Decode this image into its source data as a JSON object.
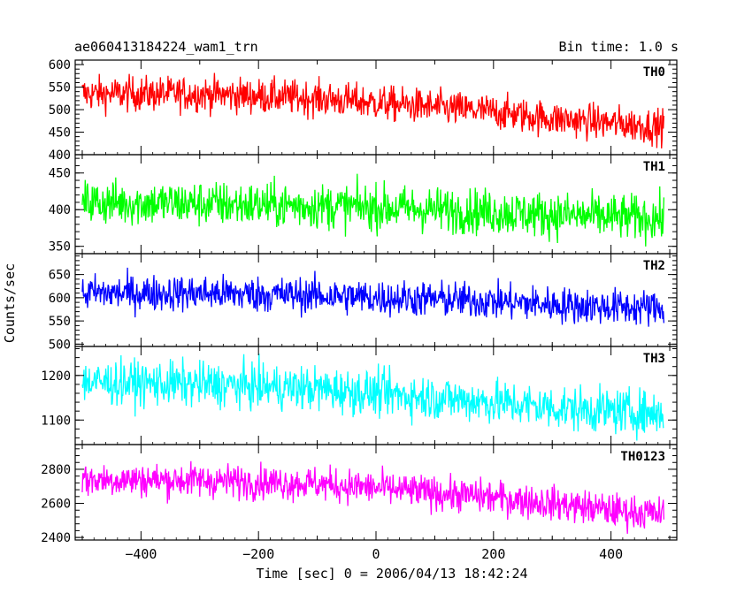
{
  "header": {
    "title": "ae060413184224_wam1_trn",
    "bin_time": "Bin time: 1.0 s"
  },
  "axes": {
    "xlabel": "Time [sec] 0 = 2006/04/13 18:42:24",
    "ylabel": "Counts/sec"
  },
  "chart_data": {
    "type": "line",
    "title": "ae060413184224_wam1_trn",
    "xlabel": "Time [sec] 0 = 2006/04/13 18:42:24",
    "ylabel": "Counts/sec",
    "xlim": [
      -512,
      512
    ],
    "x_ticks": [
      -400,
      -200,
      0,
      200,
      400
    ],
    "x_range_data": [
      -500,
      490
    ],
    "bin_time_s": 1.0,
    "panels": [
      {
        "name": "TH0",
        "color": "#ff0000",
        "ylim": [
          400,
          610
        ],
        "yticks": [
          400,
          450,
          500,
          550,
          600
        ],
        "trend": {
          "x": [
            -500,
            -300,
            -100,
            0,
            100,
            200,
            300,
            400,
            490
          ],
          "y": [
            535,
            535,
            525,
            515,
            505,
            495,
            480,
            470,
            462
          ]
        },
        "noise_amplitude": 35
      },
      {
        "name": "TH1",
        "color": "#00ff00",
        "ylim": [
          340,
          475
        ],
        "yticks": [
          350,
          400,
          450
        ],
        "trend": {
          "x": [
            -500,
            -300,
            -100,
            0,
            100,
            200,
            300,
            400,
            490
          ],
          "y": [
            410,
            408,
            405,
            403,
            400,
            397,
            393,
            390,
            388
          ]
        },
        "noise_amplitude": 28
      },
      {
        "name": "TH2",
        "color": "#0000ff",
        "ylim": [
          495,
          695
        ],
        "yticks": [
          500,
          550,
          600,
          650
        ],
        "trend": {
          "x": [
            -500,
            -300,
            -100,
            0,
            100,
            200,
            300,
            400,
            490
          ],
          "y": [
            610,
            610,
            605,
            600,
            597,
            592,
            585,
            580,
            578
          ]
        },
        "noise_amplitude": 35
      },
      {
        "name": "TH3",
        "color": "#00ffff",
        "ylim": [
          1045,
          1265
        ],
        "yticks": [
          1100,
          1200
        ],
        "trend": {
          "x": [
            -500,
            -300,
            -100,
            0,
            100,
            200,
            300,
            400,
            490
          ],
          "y": [
            1185,
            1180,
            1170,
            1160,
            1150,
            1140,
            1128,
            1120,
            1115
          ]
        },
        "noise_amplitude": 45
      },
      {
        "name": "TH0123",
        "color": "#ff00ff",
        "ylim": [
          2385,
          2945
        ],
        "yticks": [
          2400,
          2600,
          2800
        ],
        "trend": {
          "x": [
            -500,
            -300,
            -100,
            0,
            100,
            200,
            300,
            400,
            490
          ],
          "y": [
            2740,
            2735,
            2715,
            2690,
            2660,
            2635,
            2600,
            2560,
            2535
          ]
        },
        "noise_amplitude": 90
      }
    ]
  }
}
